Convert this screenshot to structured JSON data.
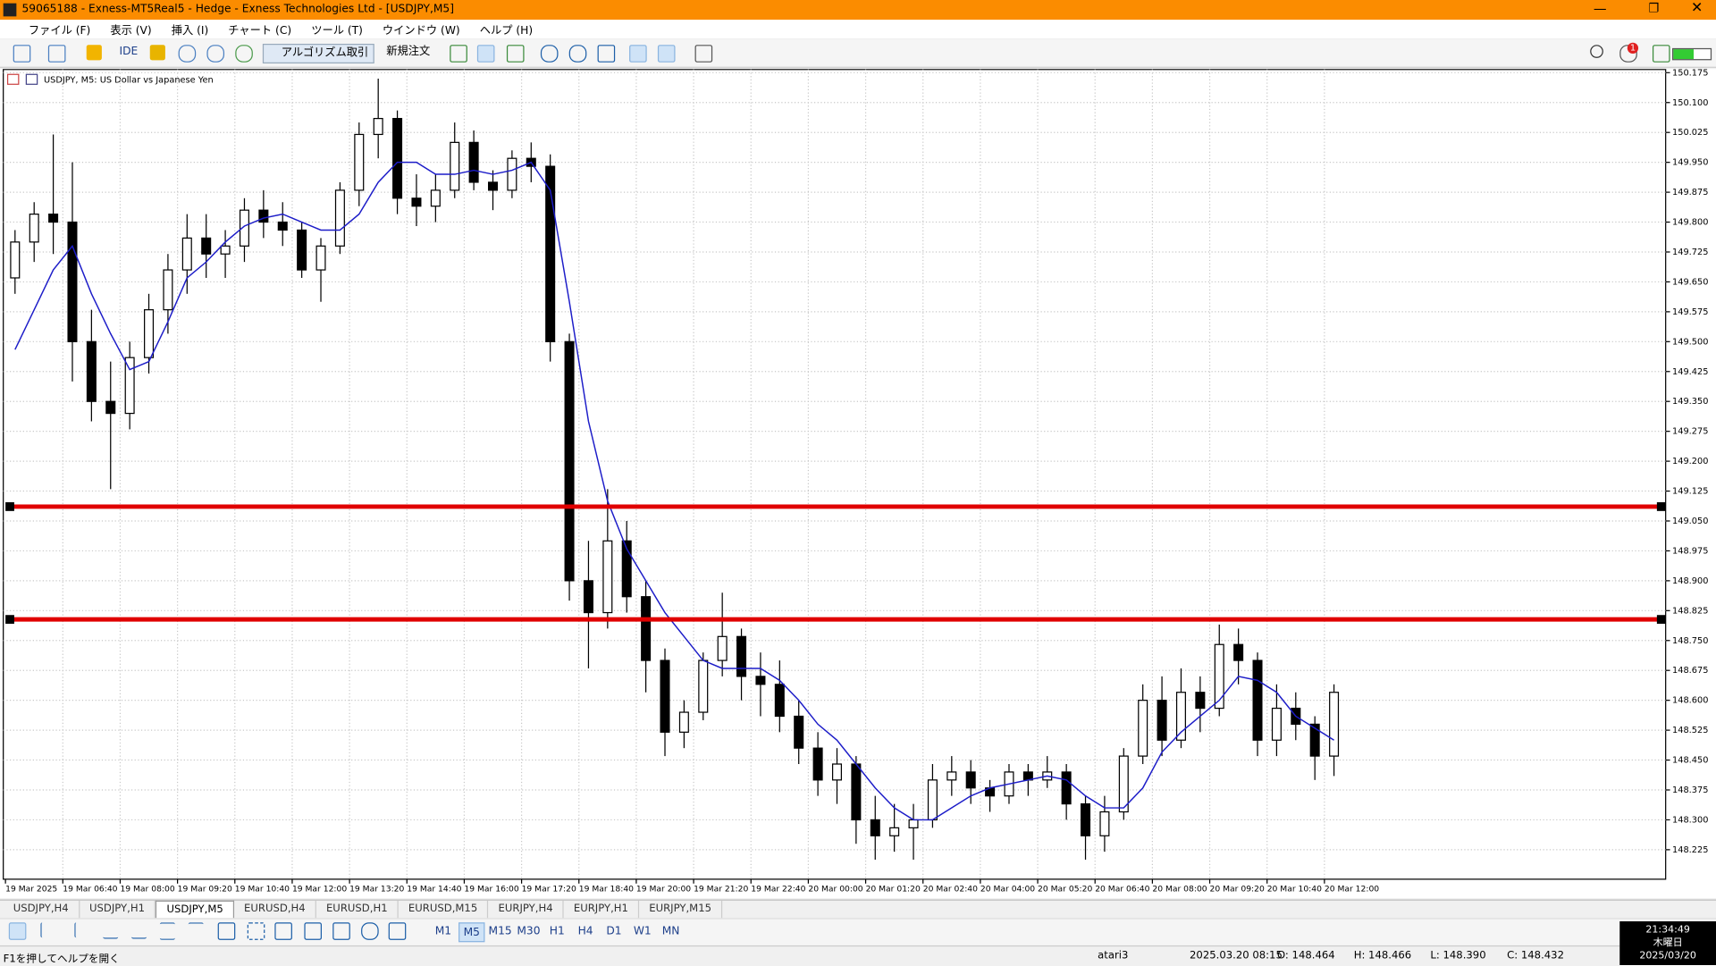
{
  "window": {
    "title": "59065188 - Exness-MT5Real5 - Hedge - Exness Technologies Ltd - [USDJPY,M5]",
    "menu": [
      "ファイル (F)",
      "表示 (V)",
      "挿入 (I)",
      "チャート (C)",
      "ツール (T)",
      "ウインドウ (W)",
      "ヘルプ (H)"
    ]
  },
  "toolbar": {
    "buttons": [
      "IDE",
      "アルゴリズム取引",
      "新規注文"
    ],
    "notification_count": "1"
  },
  "chart_data": {
    "type": "candlestick",
    "title": "USDJPY, M5:  US Dollar vs Japanese Yen",
    "x_labels": [
      "19 Mar 2025",
      "19 Mar 06:40",
      "19 Mar 08:00",
      "19 Mar 09:20",
      "19 Mar 10:40",
      "19 Mar 12:00",
      "19 Mar 13:20",
      "19 Mar 14:40",
      "19 Mar 16:00",
      "19 Mar 17:20",
      "19 Mar 18:40",
      "19 Mar 20:00",
      "19 Mar 21:20",
      "19 Mar 22:40",
      "20 Mar 00:00",
      "20 Mar 01:20",
      "20 Mar 02:40",
      "20 Mar 04:00",
      "20 Mar 05:20",
      "20 Mar 06:40",
      "20 Mar 08:00",
      "20 Mar 09:20",
      "20 Mar 10:40",
      "20 Mar 12:00"
    ],
    "open": [
      149.66,
      149.75,
      149.82,
      149.8,
      149.5,
      149.35,
      149.32,
      149.46,
      149.58,
      149.68,
      149.76,
      149.72,
      149.74,
      149.83,
      149.8,
      149.78,
      149.68,
      149.74,
      149.88,
      150.02,
      150.06,
      149.86,
      149.84,
      149.88,
      150.0,
      149.9,
      149.88,
      149.96,
      149.94,
      149.5,
      148.9,
      148.82,
      149.0,
      148.86,
      148.7,
      148.52,
      148.57,
      148.7,
      148.76,
      148.66,
      148.64,
      148.56,
      148.48,
      148.4,
      148.44,
      148.3,
      148.26,
      148.28,
      148.3,
      148.4,
      148.42,
      148.38,
      148.36,
      148.42,
      148.4,
      148.42,
      148.34,
      148.26,
      148.32,
      148.46,
      148.6,
      148.5,
      148.62,
      148.58,
      148.74,
      148.7,
      148.5,
      148.58,
      148.54,
      148.46
    ],
    "high": [
      149.78,
      149.85,
      150.02,
      149.95,
      149.58,
      149.45,
      149.5,
      149.62,
      149.72,
      149.82,
      149.82,
      149.78,
      149.86,
      149.88,
      149.85,
      149.8,
      149.76,
      149.9,
      150.05,
      150.16,
      150.08,
      149.92,
      149.92,
      150.05,
      150.03,
      149.93,
      149.98,
      150.0,
      149.97,
      149.52,
      149.0,
      149.13,
      149.05,
      148.9,
      148.73,
      148.6,
      148.72,
      148.87,
      148.78,
      148.72,
      148.7,
      148.6,
      148.52,
      148.48,
      148.46,
      148.36,
      148.34,
      148.34,
      148.44,
      148.46,
      148.45,
      148.4,
      148.44,
      148.44,
      148.46,
      148.44,
      148.36,
      148.36,
      148.48,
      148.64,
      148.66,
      148.68,
      148.66,
      148.79,
      148.78,
      148.72,
      148.64,
      148.62,
      148.56,
      148.64
    ],
    "low": [
      149.62,
      149.7,
      149.72,
      149.4,
      149.3,
      149.13,
      149.28,
      149.42,
      149.52,
      149.62,
      149.66,
      149.66,
      149.7,
      149.76,
      149.74,
      149.66,
      149.6,
      149.72,
      149.84,
      149.96,
      149.82,
      149.79,
      149.8,
      149.86,
      149.88,
      149.83,
      149.86,
      149.9,
      149.45,
      148.85,
      148.68,
      148.78,
      148.82,
      148.62,
      148.46,
      148.48,
      148.55,
      148.66,
      148.6,
      148.56,
      148.52,
      148.44,
      148.36,
      148.34,
      148.24,
      148.2,
      148.22,
      148.2,
      148.28,
      148.36,
      148.34,
      148.32,
      148.34,
      148.36,
      148.38,
      148.3,
      148.2,
      148.22,
      148.3,
      148.44,
      148.46,
      148.48,
      148.52,
      148.56,
      148.64,
      148.46,
      148.46,
      148.5,
      148.4,
      148.41
    ],
    "close": [
      149.75,
      149.82,
      149.8,
      149.5,
      149.35,
      149.32,
      149.46,
      149.58,
      149.68,
      149.76,
      149.72,
      149.74,
      149.83,
      149.8,
      149.78,
      149.68,
      149.74,
      149.88,
      150.02,
      150.06,
      149.86,
      149.84,
      149.88,
      150.0,
      149.9,
      149.88,
      149.96,
      149.94,
      149.5,
      148.9,
      148.82,
      149.0,
      148.86,
      148.7,
      148.52,
      148.57,
      148.7,
      148.76,
      148.66,
      148.64,
      148.56,
      148.48,
      148.4,
      148.44,
      148.3,
      148.26,
      148.28,
      148.3,
      148.4,
      148.42,
      148.38,
      148.36,
      148.42,
      148.4,
      148.42,
      148.34,
      148.26,
      148.32,
      148.46,
      148.6,
      148.5,
      148.62,
      148.58,
      148.74,
      148.7,
      148.5,
      148.58,
      148.54,
      148.46,
      148.62
    ],
    "ma": {
      "color": "#1c1cc8",
      "values": [
        149.48,
        149.58,
        149.68,
        149.74,
        149.62,
        149.52,
        149.43,
        149.45,
        149.55,
        149.66,
        149.7,
        149.75,
        149.79,
        149.81,
        149.82,
        149.8,
        149.78,
        149.78,
        149.82,
        149.9,
        149.95,
        149.95,
        149.92,
        149.92,
        149.93,
        149.92,
        149.93,
        149.95,
        149.88,
        149.6,
        149.3,
        149.1,
        148.98,
        148.9,
        148.82,
        148.76,
        148.7,
        148.68,
        148.68,
        148.68,
        148.65,
        148.6,
        148.54,
        148.5,
        148.44,
        148.38,
        148.33,
        148.3,
        148.3,
        148.33,
        148.36,
        148.38,
        148.39,
        148.4,
        148.41,
        148.4,
        148.36,
        148.33,
        148.33,
        148.38,
        148.47,
        148.52,
        148.56,
        148.6,
        148.66,
        148.65,
        148.62,
        148.56,
        148.53,
        148.5
      ]
    },
    "hlines": [
      {
        "value": 149.086,
        "color": "#e00000"
      },
      {
        "value": 148.803,
        "color": "#e00000"
      }
    ],
    "ylim": [
      148.151,
      150.183
    ],
    "yticks": [
      150.175,
      {
        "value": 150.1,
        "label": "150.100"
      },
      150.025,
      {
        "value": 149.95,
        "label": "149.950"
      },
      149.875,
      {
        "value": 149.8,
        "label": "149.800"
      },
      149.725,
      {
        "value": 149.65,
        "label": "149.650"
      },
      149.575,
      {
        "value": 149.5,
        "label": "149.500"
      },
      149.425,
      {
        "value": 149.35,
        "label": "149.350"
      },
      149.275,
      {
        "value": 149.2,
        "label": "149.200"
      },
      149.125,
      {
        "value": 149.05,
        "label": "149.050"
      },
      148.975,
      {
        "value": 148.9,
        "label": "148.900"
      },
      148.825,
      {
        "value": 148.75,
        "label": "148.750"
      },
      148.675,
      {
        "value": 148.6,
        "label": "148.600"
      },
      148.525,
      {
        "value": 148.45,
        "label": "148.450"
      },
      148.375,
      {
        "value": 148.3,
        "label": "148.300"
      },
      148.225
    ],
    "grid": true
  },
  "tabs": [
    "USDJPY,H4",
    "USDJPY,H1",
    "USDJPY,M5",
    "EURUSD,H4",
    "EURUSD,H1",
    "EURUSD,M15",
    "EURJPY,H4",
    "EURJPY,H1",
    "EURJPY,M15"
  ],
  "active_tab": 2,
  "timeframes": [
    "M1",
    "M5",
    "M15",
    "M30",
    "H1",
    "H4",
    "D1",
    "W1",
    "MN"
  ],
  "active_timeframe": 1,
  "status": {
    "help": "F1を押してヘルプを開く",
    "profile": "atari3",
    "time": "2025.03.20 08:15",
    "open": "O: 148.464",
    "high": "H: 148.466",
    "low": "L: 148.390",
    "close": "C: 148.432"
  },
  "clock": {
    "time": "21:34:49",
    "day": "木曜日",
    "date": "2025/03/20"
  }
}
